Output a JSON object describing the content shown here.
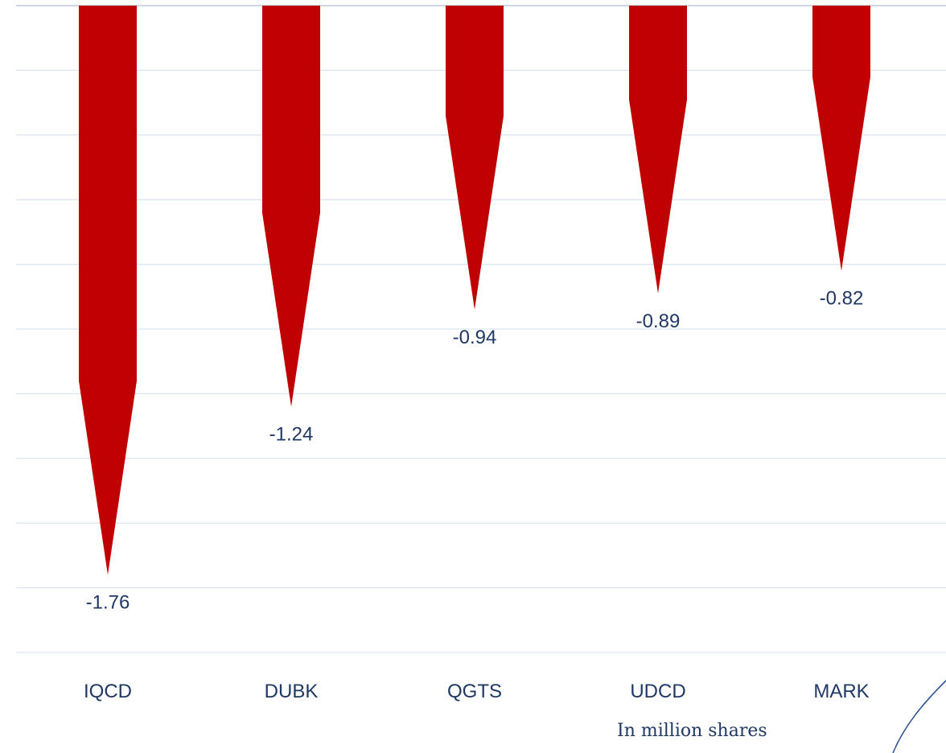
{
  "chart_data": {
    "type": "bar",
    "categories": [
      "IQCD",
      "DUBK",
      "QGTS",
      "UDCD",
      "MARK"
    ],
    "values": [
      -1.76,
      -1.24,
      -0.94,
      -0.89,
      -0.82
    ],
    "data_labels": [
      "-1.76",
      "-1.24",
      "-0.94",
      "-0.89",
      "-0.82"
    ],
    "unit_note": "In million shares",
    "ylim": [
      -2.0,
      0
    ],
    "grid": true,
    "bar_color": "#c00000",
    "label_color": "#1f3864",
    "grid_color": "#dbe5f1",
    "accent_curve_color": "#2e5597"
  }
}
